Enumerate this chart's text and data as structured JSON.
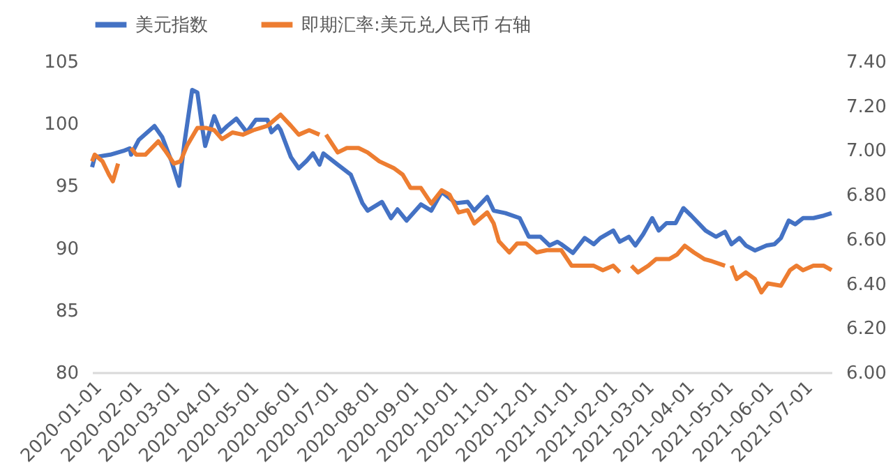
{
  "chart_data": {
    "type": "line",
    "xlim": [
      "2020-01-01",
      "2021-07-23"
    ],
    "xticks": [
      "2020-01-01",
      "2020-02-01",
      "2020-03-01",
      "2020-04-01",
      "2020-05-01",
      "2020-06-01",
      "2020-07-01",
      "2020-08-01",
      "2020-09-01",
      "2020-10-01",
      "2020-11-01",
      "2020-12-01",
      "2021-01-01",
      "2021-02-01",
      "2021-03-01",
      "2021-04-01",
      "2021-05-01",
      "2021-06-01",
      "2021-07-01"
    ],
    "ylim": [
      80,
      105
    ],
    "yticks": [
      80,
      85,
      90,
      95,
      100,
      105
    ],
    "y2lim": [
      6,
      7.4
    ],
    "y2ticks": [
      {
        "value": 6,
        "label": "6.00"
      },
      {
        "value": 6.2,
        "label": "6.20"
      },
      {
        "value": 6.4,
        "label": "6.40"
      },
      {
        "value": 6.6,
        "label": "6.60"
      },
      {
        "value": 6.8,
        "label": "6.80"
      },
      {
        "value": 7,
        "label": "7.00"
      },
      {
        "value": 7.2,
        "label": "7.20"
      },
      {
        "value": 7.4,
        "label": "7.40"
      }
    ],
    "grid": false,
    "legend": "top",
    "line_style": "solid",
    "series": [
      {
        "name": "美元指数",
        "color": "#4472c4",
        "x": [
          "2020-01-01",
          "2020-01-03",
          "2020-01-15",
          "2020-01-25",
          "2020-01-30",
          "2020-01-31",
          "2020-02-06",
          "2020-02-18",
          "2020-02-24",
          "2020-03-02",
          "2020-03-08",
          "2020-03-12",
          "2020-03-18",
          "2020-03-22",
          "2020-03-26",
          "2020-03-28",
          "2020-04-04",
          "2020-04-09",
          "2020-04-14",
          "2020-04-21",
          "2020-04-29",
          "2020-05-06",
          "2020-05-15",
          "2020-05-18",
          "2020-05-23",
          "2020-05-25",
          "2020-06-02",
          "2020-06-08",
          "2020-06-14",
          "2020-06-19",
          "2020-06-24",
          "2020-06-27",
          "2020-07-08",
          "2020-07-18",
          "2020-07-27",
          "2020-07-31",
          "2020-08-11",
          "2020-08-18",
          "2020-08-23",
          "2020-08-30",
          "2020-09-10",
          "2020-09-18",
          "2020-09-26",
          "2020-10-07",
          "2020-10-16",
          "2020-10-21",
          "2020-10-31",
          "2020-11-05",
          "2020-11-14",
          "2020-11-25",
          "2020-12-02",
          "2020-12-11",
          "2020-12-18",
          "2020-12-24",
          "2020-12-27",
          "2021-01-05",
          "2021-01-14",
          "2021-01-21",
          "2021-01-26",
          "2021-02-05",
          "2021-02-10",
          "2021-02-17",
          "2021-02-22",
          "2021-02-28",
          "2021-03-07",
          "2021-03-12",
          "2021-03-18",
          "2021-03-25",
          "2021-03-31",
          "2021-04-06",
          "2021-04-17",
          "2021-04-25",
          "2021-05-02",
          "2021-05-07",
          "2021-05-13",
          "2021-05-18",
          "2021-05-25",
          "2021-06-03",
          "2021-06-09",
          "2021-06-14",
          "2021-06-20",
          "2021-06-25",
          "2021-07-01",
          "2021-07-09",
          "2021-07-17",
          "2021-07-23"
        ],
        "values": [
          96.5,
          97.3,
          97.5,
          97.8,
          98.0,
          97.5,
          98.7,
          99.8,
          98.9,
          97.0,
          95.0,
          98.4,
          102.7,
          102.5,
          99.5,
          98.2,
          100.6,
          99.3,
          99.8,
          100.4,
          99.3,
          100.3,
          100.3,
          99.3,
          99.8,
          99.5,
          97.3,
          96.4,
          97.0,
          97.6,
          96.7,
          97.6,
          96.7,
          95.9,
          93.6,
          93.0,
          93.7,
          92.4,
          93.1,
          92.2,
          93.5,
          93.0,
          94.5,
          93.6,
          93.7,
          93.0,
          94.1,
          93.0,
          92.8,
          92.4,
          90.9,
          90.9,
          90.2,
          90.5,
          90.3,
          89.6,
          90.8,
          90.3,
          90.8,
          91.4,
          90.5,
          90.9,
          90.2,
          91.1,
          92.4,
          91.4,
          92.0,
          92.0,
          93.2,
          92.6,
          91.4,
          90.9,
          91.3,
          90.3,
          90.8,
          90.2,
          89.8,
          90.2,
          90.3,
          90.8,
          92.2,
          91.9,
          92.4,
          92.4,
          92.6,
          92.8
        ]
      },
      {
        "name": "即期汇率:美元兑人民币 右轴",
        "color": "#ed7d31",
        "axis": "y2",
        "x": [
          "2020-01-01",
          "2020-01-03",
          "2020-01-09",
          "2020-01-14",
          "2020-01-17",
          "2020-01-20",
          "2020-01-21",
          "2020-01-26",
          "2020-01-31",
          "2020-02-04",
          "2020-02-11",
          "2020-02-21",
          "2020-02-26",
          "2020-03-04",
          "2020-03-09",
          "2020-03-14",
          "2020-03-22",
          "2020-03-29",
          "2020-04-04",
          "2020-04-10",
          "2020-04-18",
          "2020-04-26",
          "2020-05-04",
          "2020-05-15",
          "2020-05-25",
          "2020-06-02",
          "2020-06-08",
          "2020-06-16",
          "2020-06-24",
          "2020-06-27",
          "2020-06-29",
          "2020-07-08",
          "2020-07-15",
          "2020-07-24",
          "2020-07-31",
          "2020-08-09",
          "2020-08-20",
          "2020-08-27",
          "2020-09-02",
          "2020-09-10",
          "2020-09-18",
          "2020-09-26",
          "2020-10-02",
          "2020-10-09",
          "2020-10-16",
          "2020-10-21",
          "2020-10-31",
          "2020-11-05",
          "2020-11-09",
          "2020-11-17",
          "2020-11-23",
          "2020-11-30",
          "2020-12-08",
          "2020-12-16",
          "2020-12-27",
          "2021-01-04",
          "2021-01-14",
          "2021-01-21",
          "2021-01-28",
          "2021-02-05",
          "2021-02-10",
          "2021-02-13",
          "2021-02-19",
          "2021-02-24",
          "2021-03-04",
          "2021-03-10",
          "2021-03-20",
          "2021-03-26",
          "2021-04-01",
          "2021-04-08",
          "2021-04-16",
          "2021-04-22",
          "2021-05-02",
          "2021-05-04",
          "2021-05-07",
          "2021-05-11",
          "2021-05-18",
          "2021-05-25",
          "2021-05-30",
          "2021-06-04",
          "2021-06-14",
          "2021-06-21",
          "2021-06-26",
          "2021-07-01",
          "2021-07-09",
          "2021-07-17",
          "2021-07-23"
        ],
        "values": [
          6.95,
          6.98,
          6.95,
          6.89,
          6.86,
          6.92,
          6.94,
          null,
          7.01,
          6.98,
          6.98,
          7.04,
          7.0,
          6.94,
          6.95,
          7.02,
          7.1,
          7.1,
          7.09,
          7.05,
          7.08,
          7.07,
          7.09,
          7.11,
          7.16,
          7.11,
          7.07,
          7.09,
          7.07,
          null,
          7.07,
          6.99,
          7.01,
          7.01,
          6.99,
          6.95,
          6.92,
          6.89,
          6.83,
          6.83,
          6.76,
          6.82,
          6.8,
          6.72,
          6.73,
          6.67,
          6.72,
          6.67,
          6.59,
          6.54,
          6.58,
          6.58,
          6.54,
          6.55,
          6.55,
          6.48,
          6.48,
          6.48,
          6.46,
          6.48,
          6.45,
          null,
          6.48,
          6.45,
          6.48,
          6.51,
          6.51,
          6.53,
          6.57,
          6.54,
          6.51,
          6.5,
          6.48,
          null,
          6.48,
          6.42,
          6.45,
          6.42,
          6.36,
          6.4,
          6.39,
          6.46,
          6.48,
          6.46,
          6.48,
          6.48,
          6.46
        ]
      }
    ]
  }
}
